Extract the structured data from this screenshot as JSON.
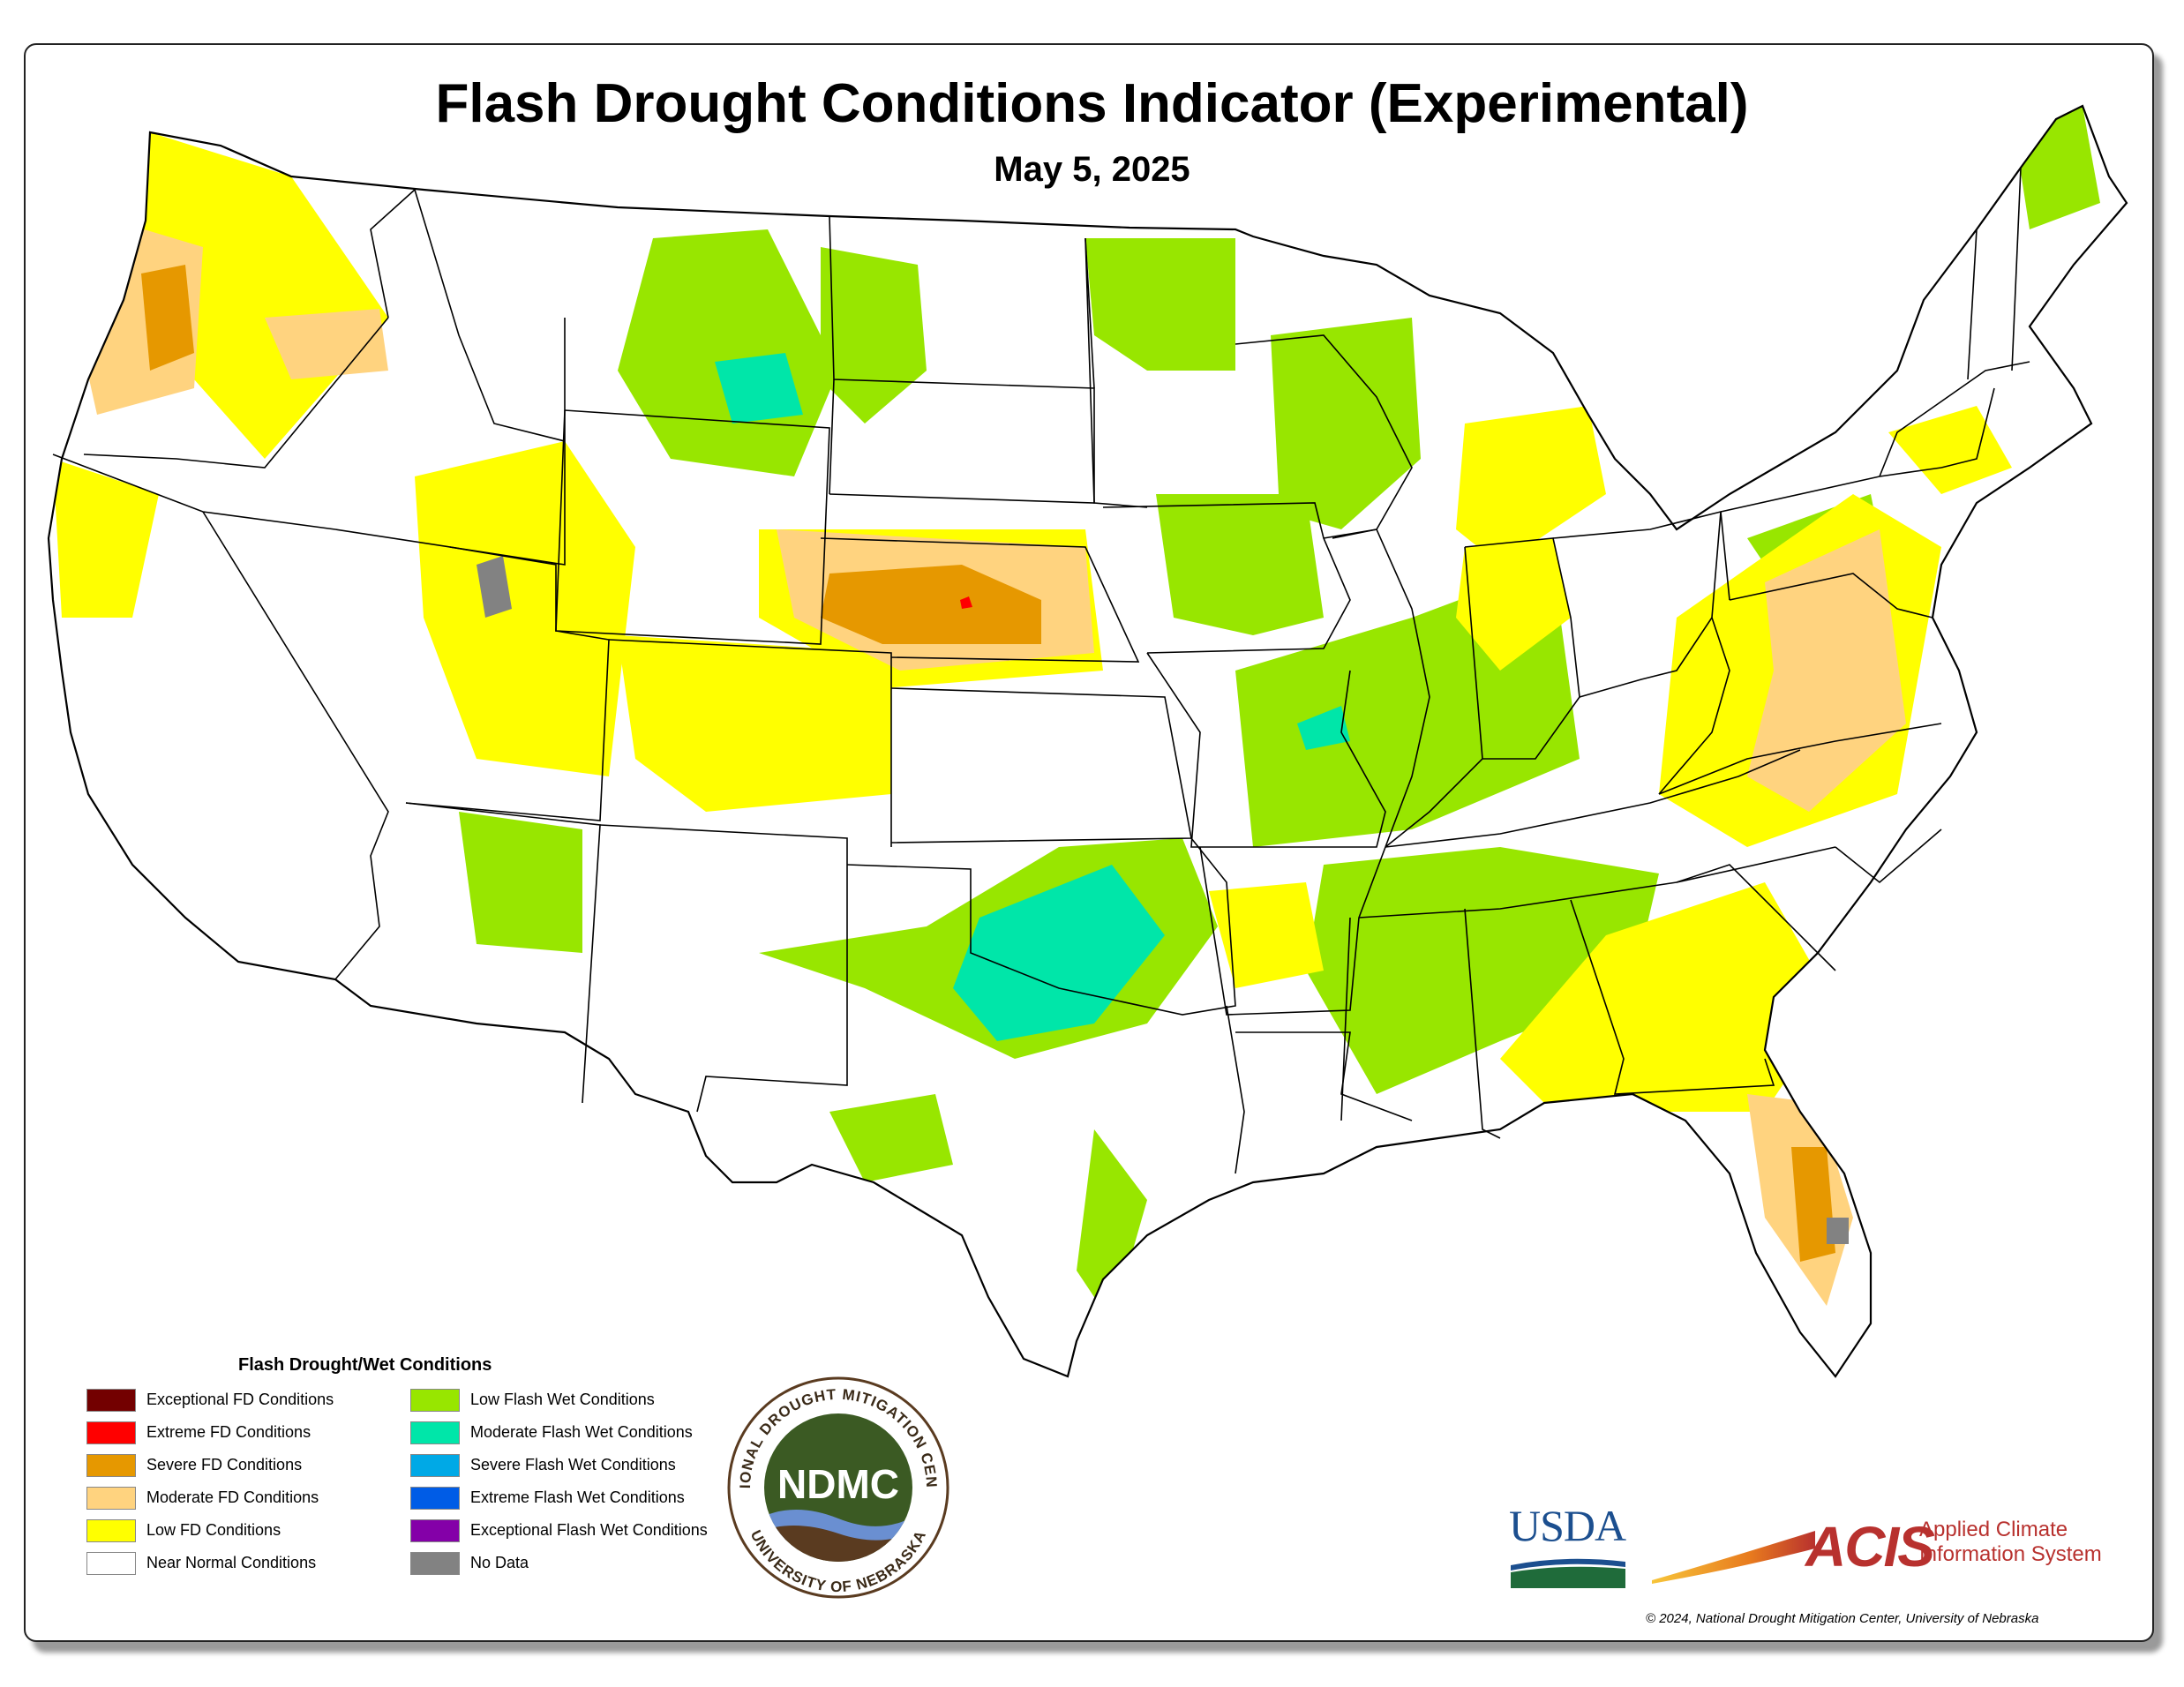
{
  "title": "Flash Drought Conditions Indicator (Experimental)",
  "date": "May 5, 2025",
  "legend": {
    "title": "Flash Drought/Wet Conditions",
    "drought": [
      {
        "label": "Exceptional FD Conditions",
        "color": "#730000"
      },
      {
        "label": "Extreme FD Conditions",
        "color": "#ff0000"
      },
      {
        "label": "Severe FD Conditions",
        "color": "#e69800"
      },
      {
        "label": "Moderate FD Conditions",
        "color": "#ffd37f"
      },
      {
        "label": "Low FD Conditions",
        "color": "#ffff00"
      },
      {
        "label": "Near Normal Conditions",
        "color": "#ffffff"
      }
    ],
    "wet": [
      {
        "label": "Low Flash Wet Conditions",
        "color": "#98e600"
      },
      {
        "label": "Moderate Flash Wet Conditions",
        "color": "#00e6a9"
      },
      {
        "label": "Severe Flash Wet Conditions",
        "color": "#00a9e6"
      },
      {
        "label": "Extreme Flash Wet Conditions",
        "color": "#005ce6"
      },
      {
        "label": "Exceptional Flash Wet Conditions",
        "color": "#8400a8"
      },
      {
        "label": "No Data",
        "color": "#828282"
      }
    ]
  },
  "logos": {
    "ndmc_top": "NATIONAL DROUGHT MITIGATION CENTER",
    "ndmc_center": "NDMC",
    "ndmc_bottom": "UNIVERSITY OF NEBRASKA",
    "usda": "USDA",
    "acis": "ACIS",
    "acis_line1": "Applied Climate",
    "acis_line2": "Information System"
  },
  "copyright": "© 2024, National Drought Mitigation Center, University of Nebraska",
  "colors": {
    "low_fd": "#ffff00",
    "moderate_fd": "#ffd37f",
    "severe_fd": "#e69800",
    "extreme_fd": "#ff0000",
    "low_wet": "#98e600",
    "moderate_wet": "#00e6a9",
    "no_data": "#828282"
  }
}
